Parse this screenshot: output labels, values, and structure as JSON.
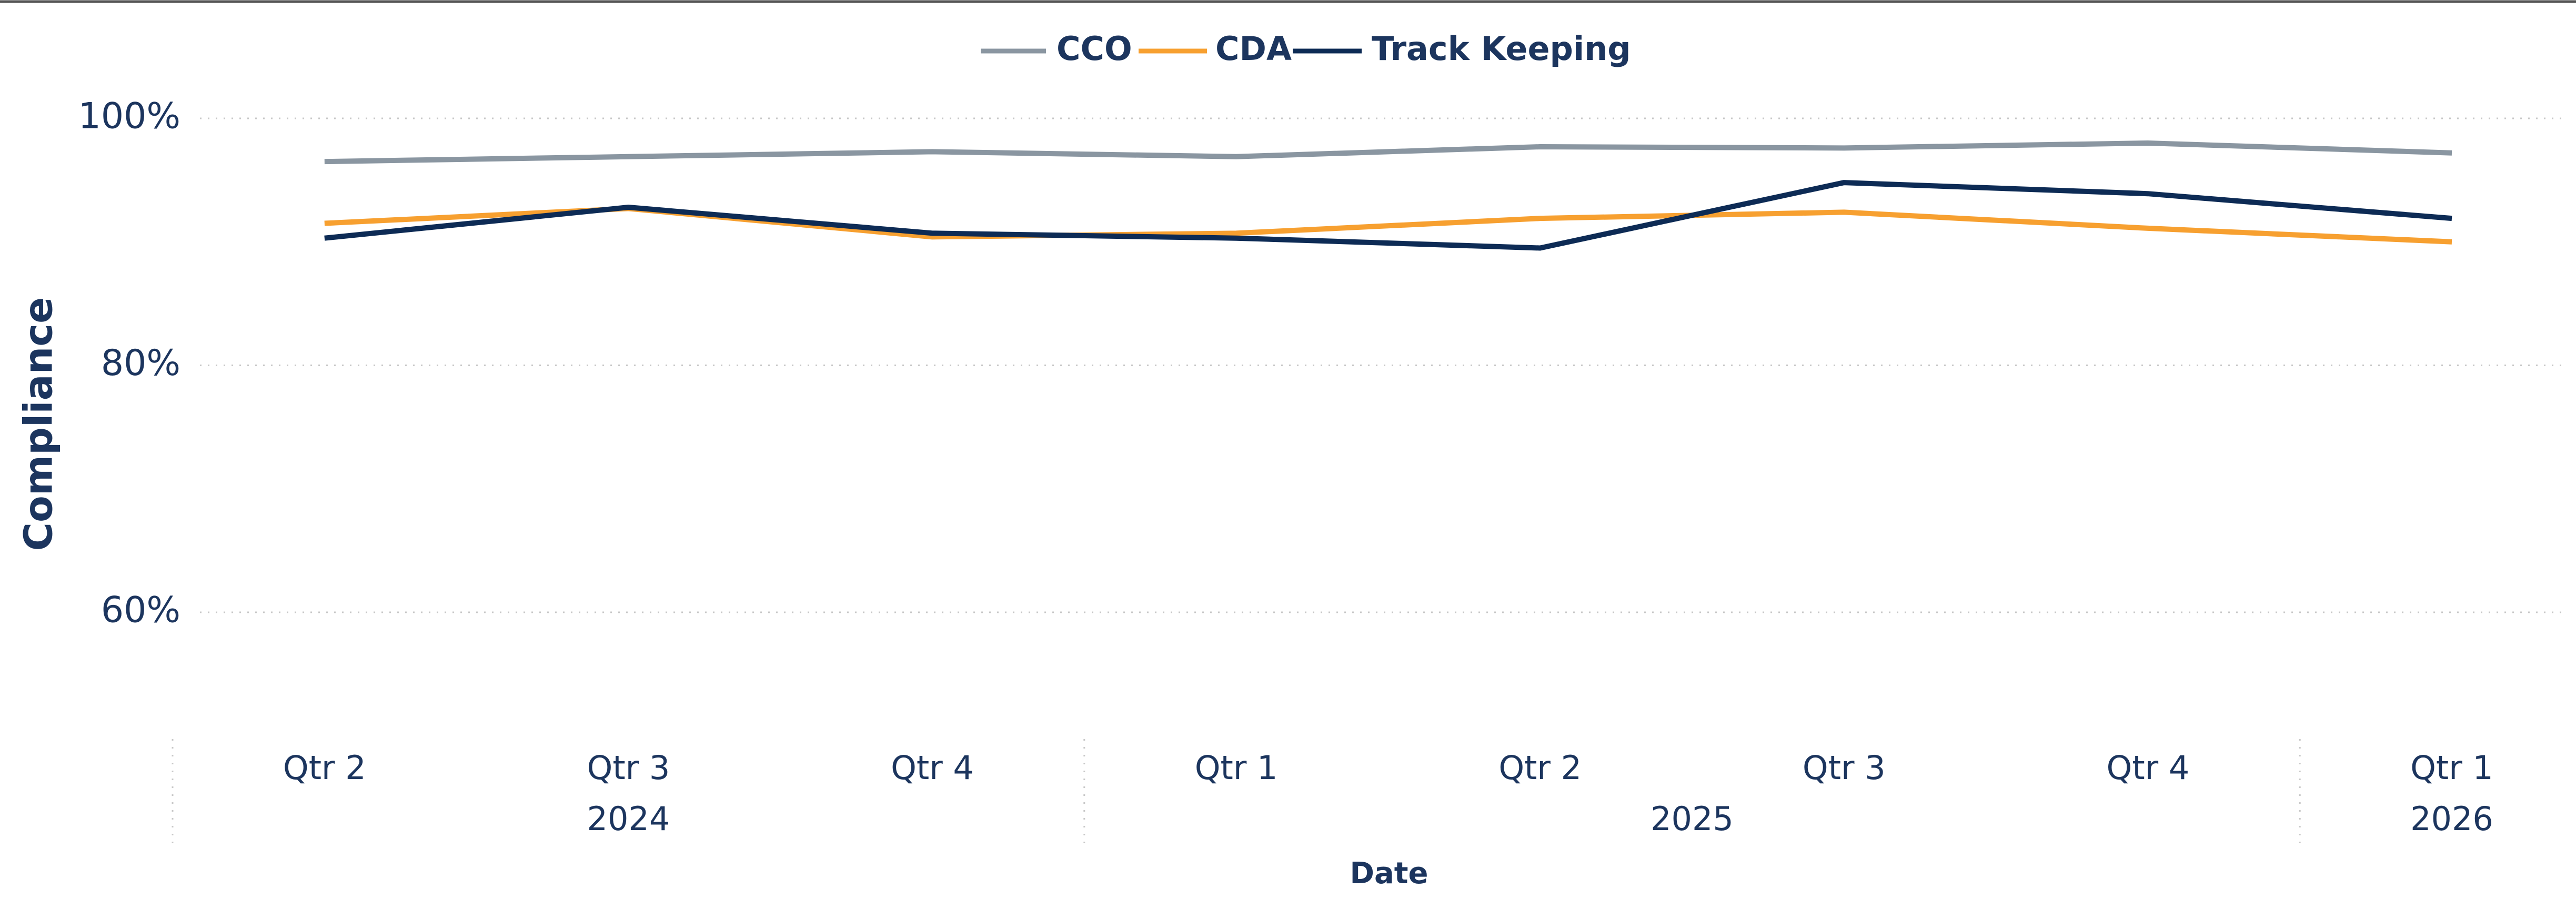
{
  "chart_data": {
    "type": "line",
    "x_label": "Date",
    "y_label": "Compliance",
    "categories": [
      "Qtr 2",
      "Qtr 3",
      "Qtr 4",
      "Qtr 1",
      "Qtr 2",
      "Qtr 3",
      "Qtr 4",
      "Qtr 1"
    ],
    "years": [
      "2024",
      "2025",
      "2026"
    ],
    "year_spans": [
      3,
      4,
      1
    ],
    "series": [
      {
        "name": "CCO",
        "color": "#8a96a1",
        "values": [
          96.5,
          96.9,
          97.3,
          96.9,
          97.7,
          97.6,
          98.0,
          97.2
        ]
      },
      {
        "name": "CDA",
        "color": "#f7a030",
        "values": [
          91.5,
          92.7,
          90.4,
          90.7,
          91.9,
          92.4,
          91.1,
          90.0
        ]
      },
      {
        "name": "Track Keeping",
        "color": "#0d2b55",
        "values": [
          90.3,
          92.8,
          90.7,
          90.3,
          89.5,
          94.8,
          93.9,
          91.9
        ]
      }
    ],
    "ylim": [
      50,
      103
    ],
    "yticks": [
      {
        "value": 60,
        "label": "60%"
      },
      {
        "value": 80,
        "label": "80%"
      },
      {
        "value": 100,
        "label": "100%"
      }
    ],
    "grid": true,
    "legend": "top"
  }
}
